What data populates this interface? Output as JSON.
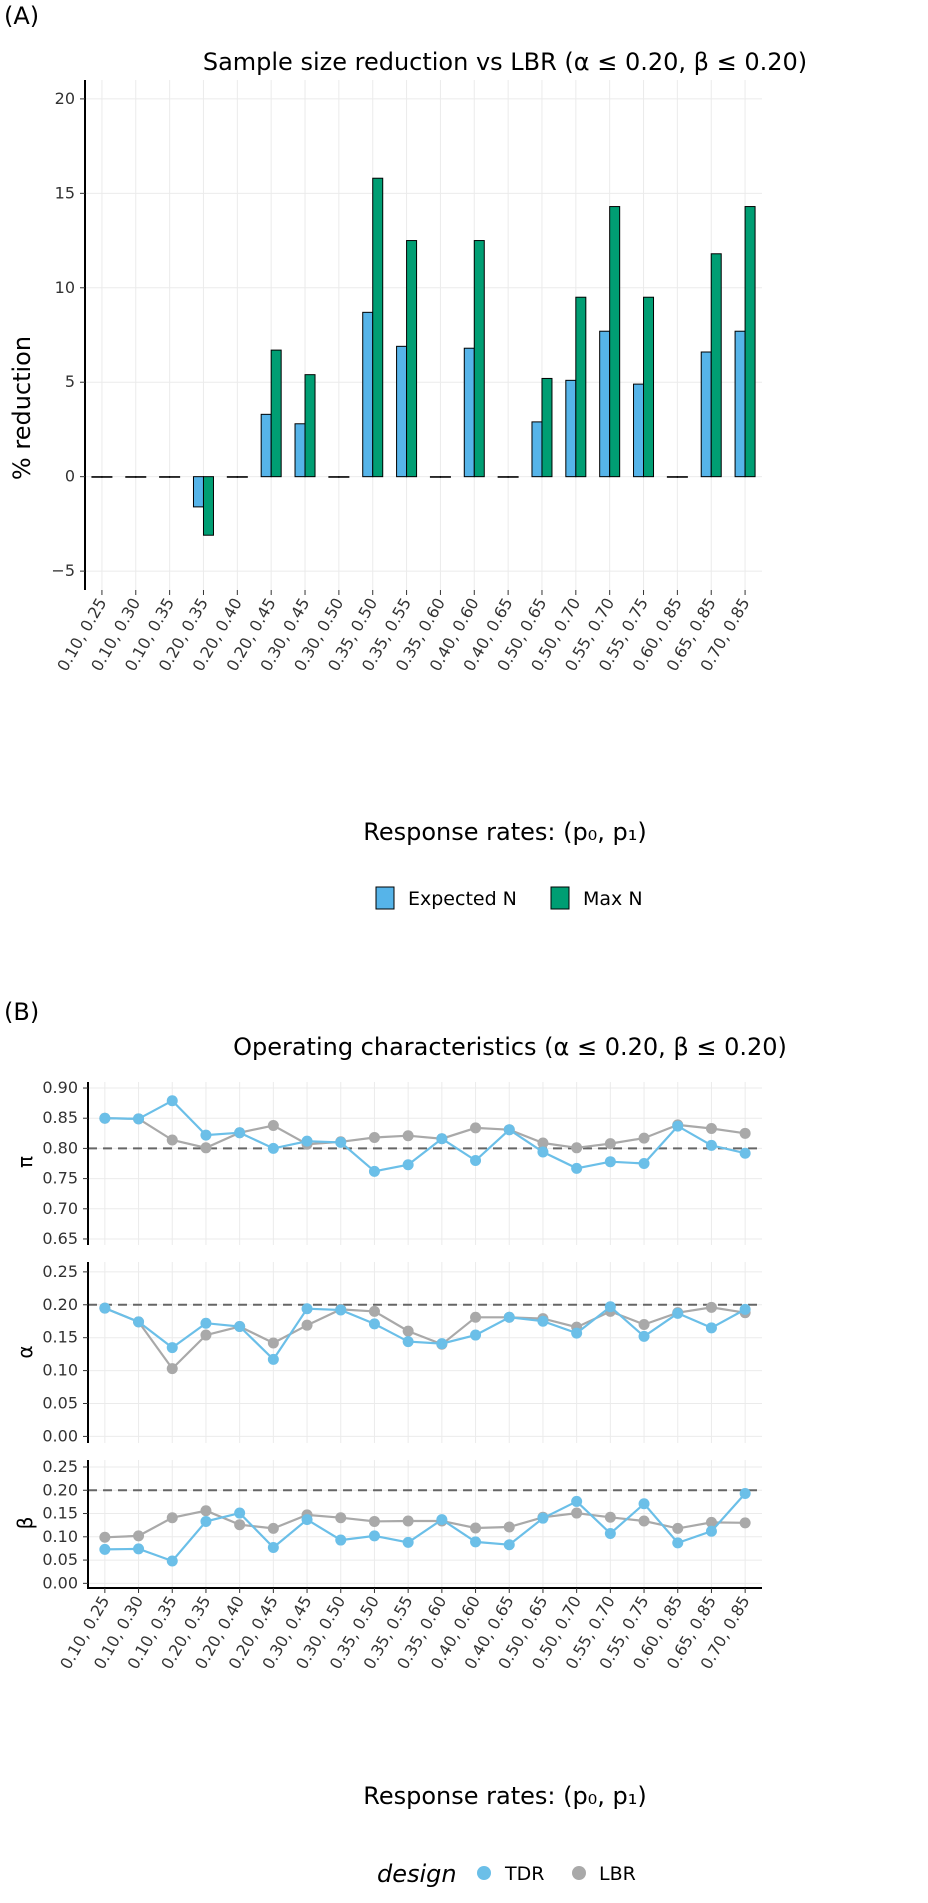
{
  "panel_a": {
    "tag": "(A)",
    "title": "Sample size reduction vs LBR (α ≤  0.20, β ≤  0.20)",
    "ylabel": "% reduction",
    "xlabel": "Response rates: (p₀, p₁)",
    "legend": [
      "Expected N",
      "Max N"
    ]
  },
  "panel_b": {
    "tag": "(B)",
    "title": "Operating characteristics (α ≤ 0.20, β ≤ 0.20)",
    "xlabel": "Response rates: (p₀, p₁)",
    "legend_title": "design",
    "legend": [
      "TDR",
      "LBR"
    ],
    "facets": [
      "π",
      "α",
      "β"
    ]
  },
  "colors": {
    "expected": "#56B4E9",
    "max": "#009E73",
    "tdr": "#6BBFE8",
    "lbr": "#A9A9A9"
  },
  "chart_data": [
    {
      "type": "bar",
      "title": "Sample size reduction vs LBR (α ≤  0.20, β ≤  0.20)",
      "xlabel": "Response rates: (p₀, p₁)",
      "ylabel": "% reduction",
      "ylim": [
        -6,
        21
      ],
      "yticks": [
        -5,
        0,
        5,
        10,
        15,
        20
      ],
      "grid": true,
      "legend_position": "bottom",
      "categories": [
        "0.10, 0.25",
        "0.10, 0.30",
        "0.10, 0.35",
        "0.20, 0.35",
        "0.20, 0.40",
        "0.20, 0.45",
        "0.30, 0.45",
        "0.30, 0.50",
        "0.35, 0.50",
        "0.35, 0.55",
        "0.35, 0.60",
        "0.40, 0.60",
        "0.40, 0.65",
        "0.50, 0.65",
        "0.50, 0.70",
        "0.55, 0.70",
        "0.55, 0.75",
        "0.60, 0.85",
        "0.65, 0.85",
        "0.70, 0.85"
      ],
      "series": [
        {
          "name": "Expected N",
          "values": [
            0,
            0,
            0,
            -1.6,
            0,
            3.3,
            2.8,
            0,
            8.7,
            6.9,
            0,
            6.8,
            0,
            2.9,
            5.1,
            7.7,
            4.9,
            0,
            6.6,
            7.7
          ]
        },
        {
          "name": "Max N",
          "values": [
            0,
            0,
            0,
            -3.1,
            0,
            6.7,
            5.4,
            0,
            15.8,
            12.5,
            0,
            12.5,
            0,
            5.2,
            9.5,
            14.3,
            9.5,
            0,
            11.8,
            14.3
          ]
        }
      ]
    },
    {
      "type": "line",
      "title": "Operating characteristics (α ≤ 0.20, β ≤ 0.20)",
      "xlabel": "Response rates: (p₀, p₁)",
      "grid": true,
      "legend_position": "bottom",
      "categories": [
        "0.10, 0.25",
        "0.10, 0.30",
        "0.10, 0.35",
        "0.20, 0.35",
        "0.20, 0.40",
        "0.20, 0.45",
        "0.30, 0.45",
        "0.30, 0.50",
        "0.35, 0.50",
        "0.35, 0.55",
        "0.35, 0.60",
        "0.40, 0.60",
        "0.40, 0.65",
        "0.50, 0.65",
        "0.50, 0.70",
        "0.55, 0.70",
        "0.55, 0.75",
        "0.60, 0.85",
        "0.65, 0.85",
        "0.70, 0.85"
      ],
      "facets": [
        {
          "label": "π",
          "ylim": [
            0.64,
            0.91
          ],
          "yticks": [
            0.65,
            0.7,
            0.75,
            0.8,
            0.85,
            0.9
          ],
          "reference_line": 0.8,
          "series": [
            {
              "name": "TDR",
              "values": [
                0.85,
                0.849,
                0.879,
                0.822,
                0.826,
                0.8,
                0.812,
                0.81,
                0.762,
                0.773,
                0.816,
                0.78,
                0.831,
                0.794,
                0.767,
                0.778,
                0.775,
                0.837,
                0.805,
                0.792
              ]
            },
            {
              "name": "LBR",
              "values": [
                0.85,
                0.849,
                0.814,
                0.801,
                0.826,
                0.838,
                0.807,
                0.811,
                0.818,
                0.821,
                0.816,
                0.834,
                0.831,
                0.809,
                0.801,
                0.808,
                0.817,
                0.839,
                0.833,
                0.825
              ]
            }
          ]
        },
        {
          "label": "α",
          "ylim": [
            -0.01,
            0.265
          ],
          "yticks": [
            0.0,
            0.05,
            0.1,
            0.15,
            0.2,
            0.25
          ],
          "reference_line": 0.2,
          "series": [
            {
              "name": "TDR",
              "values": [
                0.195,
                0.174,
                0.135,
                0.172,
                0.167,
                0.117,
                0.194,
                0.192,
                0.171,
                0.144,
                0.141,
                0.154,
                0.181,
                0.175,
                0.157,
                0.197,
                0.152,
                0.187,
                0.165,
                0.193
              ]
            },
            {
              "name": "LBR",
              "values": [
                0.195,
                0.174,
                0.103,
                0.154,
                0.167,
                0.142,
                0.169,
                0.193,
                0.19,
                0.16,
                0.14,
                0.181,
                0.181,
                0.179,
                0.166,
                0.19,
                0.17,
                0.188,
                0.196,
                0.188
              ]
            }
          ]
        },
        {
          "label": "β",
          "ylim": [
            -0.01,
            0.265
          ],
          "yticks": [
            0.0,
            0.05,
            0.1,
            0.15,
            0.2,
            0.25
          ],
          "reference_line": 0.2,
          "series": [
            {
              "name": "TDR",
              "values": [
                0.073,
                0.074,
                0.048,
                0.133,
                0.151,
                0.077,
                0.137,
                0.093,
                0.102,
                0.088,
                0.137,
                0.089,
                0.083,
                0.14,
                0.176,
                0.107,
                0.171,
                0.087,
                0.112,
                0.193
              ]
            },
            {
              "name": "LBR",
              "values": [
                0.099,
                0.102,
                0.141,
                0.156,
                0.126,
                0.118,
                0.147,
                0.141,
                0.133,
                0.134,
                0.134,
                0.119,
                0.121,
                0.142,
                0.151,
                0.142,
                0.134,
                0.118,
                0.131,
                0.13
              ]
            }
          ]
        }
      ]
    }
  ]
}
